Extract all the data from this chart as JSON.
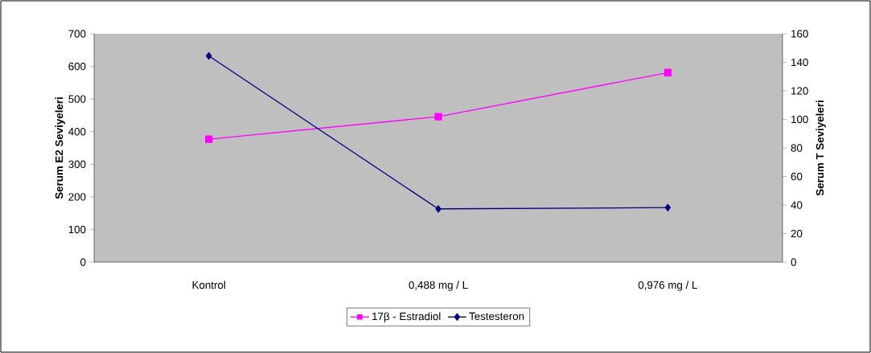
{
  "chart_data": {
    "type": "line",
    "categories": [
      "Kontrol",
      "0,488 mg / L",
      "0,976 mg / L"
    ],
    "series": [
      {
        "name": "17β - Estradiol",
        "color": "#ff00ff",
        "marker": "square",
        "values": [
          377,
          446,
          581
        ]
      },
      {
        "name": "Testesteron",
        "color": "#000080",
        "marker": "diamond",
        "axis": "y2",
        "values": [
          144.5,
          37.3,
          38.2
        ]
      }
    ],
    "ylabel": "Serum E2 Seviyeleri",
    "y2label": "Serum T Seviyeleri",
    "ylim": [
      0,
      700
    ],
    "yticks": [
      0,
      100,
      200,
      300,
      400,
      500,
      600,
      700
    ],
    "y2lim": [
      0,
      160
    ],
    "y2ticks": [
      0,
      20,
      40,
      60,
      80,
      100,
      120,
      140,
      160
    ],
    "legend": "bottom",
    "grid": false,
    "line_style": "solid"
  }
}
